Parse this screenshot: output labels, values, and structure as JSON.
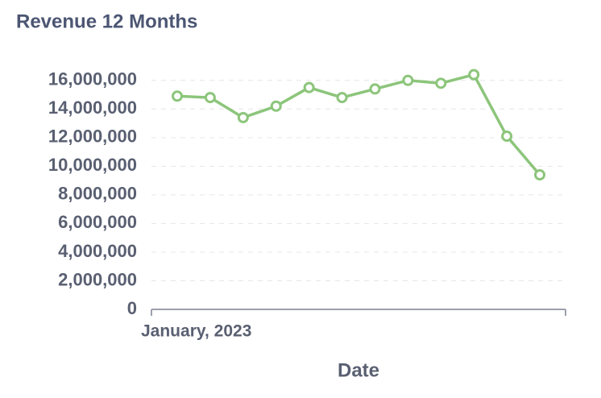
{
  "chart_data": {
    "type": "line",
    "title": "Revenue 12 Months",
    "x_label": "Date",
    "categories": [
      "January, 2023",
      null,
      null,
      null,
      null,
      null,
      null,
      null,
      null,
      null,
      null,
      null
    ],
    "series": [
      {
        "name": "Revenue",
        "color": "#8cc57b",
        "values": [
          14900000,
          14800000,
          13400000,
          14200000,
          15500000,
          14800000,
          15400000,
          16000000,
          15800000,
          16400000,
          12100000,
          9400000
        ]
      }
    ],
    "ylim": [
      0,
      17000000
    ],
    "yticks": [
      0,
      {
        "value": 2000000,
        "label": "2,000,000"
      },
      {
        "value": 4000000,
        "label": "4,000,000"
      },
      {
        "value": 6000000,
        "label": "6,000,000"
      },
      {
        "value": 8000000,
        "label": "8,000,000"
      },
      {
        "value": 10000000,
        "label": "10,000,000"
      },
      {
        "value": 12000000,
        "label": "12,000,000"
      },
      {
        "value": 14000000,
        "label": "14,000,000"
      },
      {
        "value": 16000000,
        "label": "16,000,000"
      }
    ],
    "grid": true
  }
}
